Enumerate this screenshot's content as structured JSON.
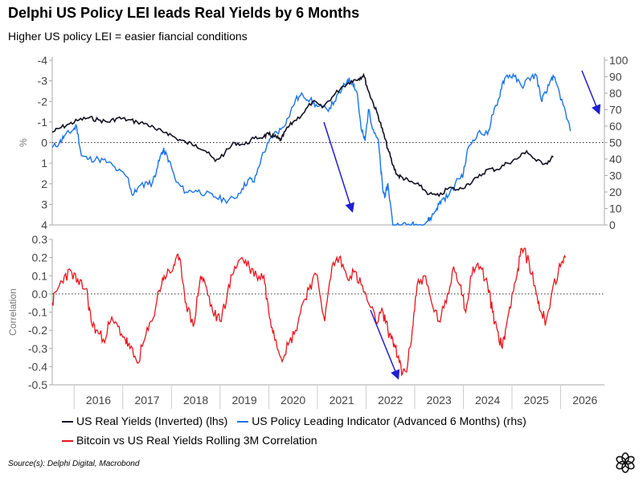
{
  "title": "Delphi US Policy LEI leads Real Yields by 6 Months",
  "subtitle": "Higher US policy LEI = easier fiancial conditions",
  "source": "Source(s): Delphi Digital, Macrobond",
  "logo_icon": "delphi-flower-logo-icon",
  "colors": {
    "real_yields": "#111122",
    "policy_lei": "#1a73e8",
    "correlation": "#e8151c",
    "arrows": "#1f1fd0"
  },
  "chart_data": [
    {
      "type": "line",
      "title": "",
      "xlabel": "",
      "ylabel": "%",
      "y2label": "",
      "x_ticks": [
        "2016",
        "2017",
        "2018",
        "2019",
        "2020",
        "2021",
        "2022",
        "2023",
        "2024",
        "2025",
        "2026"
      ],
      "xlim": [
        2015.55,
        2026.9
      ],
      "ylim": [
        4,
        -4
      ],
      "y_inverted": true,
      "y_ticks": [
        "-4",
        "-3",
        "-2",
        "-1",
        "0",
        "1",
        "2",
        "3",
        "4"
      ],
      "y2lim": [
        0,
        100
      ],
      "y2_ticks": [
        "0",
        "10",
        "20",
        "30",
        "40",
        "50",
        "60",
        "70",
        "80",
        "90",
        "100"
      ],
      "zero_line": "dotted",
      "series": [
        {
          "name": "US Real Yields (Inverted) (lhs)",
          "axis": "left",
          "x": [
            2015.55,
            2015.7,
            2015.9,
            2016.1,
            2016.3,
            2016.5,
            2016.7,
            2016.9,
            2017.1,
            2017.3,
            2017.5,
            2017.7,
            2017.9,
            2018.1,
            2018.3,
            2018.5,
            2018.7,
            2018.9,
            2019.1,
            2019.3,
            2019.5,
            2019.7,
            2019.9,
            2020.0,
            2020.1,
            2020.2,
            2020.25,
            2020.35,
            2020.5,
            2020.7,
            2020.9,
            2021.1,
            2021.3,
            2021.5,
            2021.7,
            2021.85,
            2021.95,
            2022.05,
            2022.15,
            2022.25,
            2022.35,
            2022.45,
            2022.55,
            2022.65,
            2022.75,
            2022.9,
            2023.1,
            2023.3,
            2023.5,
            2023.7,
            2023.9,
            2024.1,
            2024.3,
            2024.5,
            2024.7,
            2024.9,
            2025.1,
            2025.3,
            2025.5,
            2025.7,
            2025.85
          ],
          "y": [
            -0.5,
            -0.7,
            -0.9,
            -1.1,
            -1.2,
            -1.1,
            -1.0,
            -1.2,
            -1.1,
            -1.0,
            -0.9,
            -0.6,
            -0.5,
            -0.2,
            0.0,
            0.1,
            0.4,
            0.9,
            0.5,
            0.0,
            0.1,
            -0.2,
            -0.3,
            -0.4,
            -0.3,
            -0.2,
            -0.1,
            -0.6,
            -1.0,
            -1.4,
            -2.0,
            -1.7,
            -2.2,
            -2.7,
            -3.0,
            -3.1,
            -3.3,
            -2.5,
            -1.9,
            -1.3,
            -0.5,
            0.3,
            1.1,
            1.6,
            1.7,
            1.9,
            2.1,
            2.5,
            2.6,
            2.2,
            2.3,
            2.0,
            1.7,
            1.3,
            1.3,
            1.0,
            0.8,
            0.4,
            0.9,
            1.0,
            0.7
          ]
        },
        {
          "name": "US Policy Leading Indicator (Advanced 6 Months) (rhs)",
          "axis": "right",
          "x": [
            2015.55,
            2015.7,
            2015.8,
            2015.95,
            2016.05,
            2016.15,
            2016.3,
            2016.5,
            2016.7,
            2016.9,
            2017.1,
            2017.2,
            2017.3,
            2017.5,
            2017.6,
            2017.7,
            2017.8,
            2017.85,
            2017.95,
            2018.1,
            2018.3,
            2018.5,
            2018.7,
            2018.9,
            2019.1,
            2019.3,
            2019.45,
            2019.6,
            2019.7,
            2019.85,
            2020.0,
            2020.1,
            2020.25,
            2020.4,
            2020.55,
            2020.7,
            2020.85,
            2021.0,
            2021.2,
            2021.35,
            2021.5,
            2021.62,
            2021.72,
            2021.82,
            2021.9,
            2021.98,
            2022.05,
            2022.15,
            2022.25,
            2022.3,
            2022.35,
            2022.4,
            2022.45,
            2022.55,
            2022.7,
            2022.9,
            2023.0,
            2023.15,
            2023.25,
            2023.35,
            2023.45,
            2023.55,
            2023.7,
            2023.9,
            2024.0,
            2024.1,
            2024.3,
            2024.5,
            2024.6,
            2024.7,
            2024.8,
            2024.9,
            2025.05,
            2025.2,
            2025.35,
            2025.5,
            2025.6,
            2025.7,
            2025.82,
            2025.9,
            2026.05,
            2026.2
          ],
          "y": [
            47,
            50,
            54,
            57,
            60,
            42,
            40,
            40,
            38,
            33,
            29,
            18,
            22,
            26,
            25,
            34,
            44,
            45,
            39,
            26,
            20,
            21,
            19,
            17,
            15,
            16,
            22,
            28,
            26,
            41,
            50,
            55,
            58,
            65,
            76,
            79,
            76,
            72,
            70,
            75,
            82,
            88,
            87,
            80,
            58,
            51,
            70,
            58,
            52,
            35,
            20,
            18,
            25,
            0,
            0,
            0,
            0,
            0,
            2,
            5,
            10,
            15,
            18,
            28,
            31,
            47,
            56,
            55,
            67,
            73,
            86,
            91,
            90,
            84,
            89,
            91,
            76,
            80,
            90,
            87,
            73,
            57
          ]
        }
      ]
    },
    {
      "type": "line",
      "title": "",
      "xlabel": "",
      "ylabel": "Correlation",
      "x_ticks": [
        "2016",
        "2017",
        "2018",
        "2019",
        "2020",
        "2021",
        "2022",
        "2023",
        "2024",
        "2025",
        "2026"
      ],
      "xlim": [
        2015.55,
        2026.9
      ],
      "ylim": [
        -0.5,
        0.3
      ],
      "y_ticks": [
        "0.3",
        "0.2",
        "0.1",
        "0.0",
        "-0.1",
        "-0.2",
        "-0.3",
        "-0.4",
        "-0.5"
      ],
      "zero_line": "dotted",
      "series": [
        {
          "name": "Bitcoin vs US Real Yields Rolling 3M Correlation",
          "axis": "left",
          "x": [
            2015.55,
            2015.65,
            2015.8,
            2015.95,
            2016.1,
            2016.25,
            2016.35,
            2016.45,
            2016.6,
            2016.75,
            2016.9,
            2017.05,
            2017.15,
            2017.3,
            2017.45,
            2017.6,
            2017.75,
            2017.85,
            2018.0,
            2018.1,
            2018.2,
            2018.3,
            2018.45,
            2018.6,
            2018.7,
            2018.85,
            2019.0,
            2019.15,
            2019.3,
            2019.45,
            2019.6,
            2019.75,
            2019.9,
            2020.0,
            2020.1,
            2020.25,
            2020.4,
            2020.55,
            2020.7,
            2020.85,
            2021.0,
            2021.15,
            2021.3,
            2021.45,
            2021.6,
            2021.75,
            2021.9,
            2022.05,
            2022.2,
            2022.35,
            2022.45,
            2022.55,
            2022.65,
            2022.75,
            2022.85,
            2022.95,
            2023.05,
            2023.2,
            2023.35,
            2023.5,
            2023.65,
            2023.8,
            2023.95,
            2024.05,
            2024.2,
            2024.35,
            2024.5,
            2024.6,
            2024.7,
            2024.8,
            2024.9,
            2025.0,
            2025.1,
            2025.2,
            2025.35,
            2025.5,
            2025.6,
            2025.7,
            2025.85,
            2026.0,
            2026.1
          ],
          "y": [
            -0.05,
            0.02,
            0.1,
            0.12,
            0.05,
            0.03,
            -0.15,
            -0.2,
            -0.25,
            -0.15,
            -0.18,
            -0.25,
            -0.3,
            -0.38,
            -0.25,
            -0.15,
            0.02,
            0.1,
            0.12,
            0.2,
            0.15,
            -0.05,
            -0.18,
            0.1,
            0.05,
            -0.1,
            -0.15,
            0.0,
            0.15,
            0.2,
            0.15,
            0.1,
            0.1,
            -0.1,
            -0.2,
            -0.35,
            -0.28,
            -0.2,
            -0.05,
            0.05,
            0.1,
            -0.15,
            0.15,
            0.2,
            0.1,
            0.12,
            0.05,
            -0.05,
            -0.15,
            -0.1,
            -0.2,
            -0.25,
            -0.35,
            -0.44,
            -0.4,
            -0.2,
            0.05,
            0.1,
            -0.05,
            -0.15,
            -0.05,
            0.15,
            0.05,
            -0.1,
            0.15,
            0.15,
            0.05,
            -0.1,
            -0.2,
            -0.3,
            -0.15,
            0.0,
            0.1,
            0.25,
            0.18,
            0.0,
            -0.1,
            -0.15,
            0.05,
            0.15,
            0.2
          ]
        }
      ]
    }
  ]
}
